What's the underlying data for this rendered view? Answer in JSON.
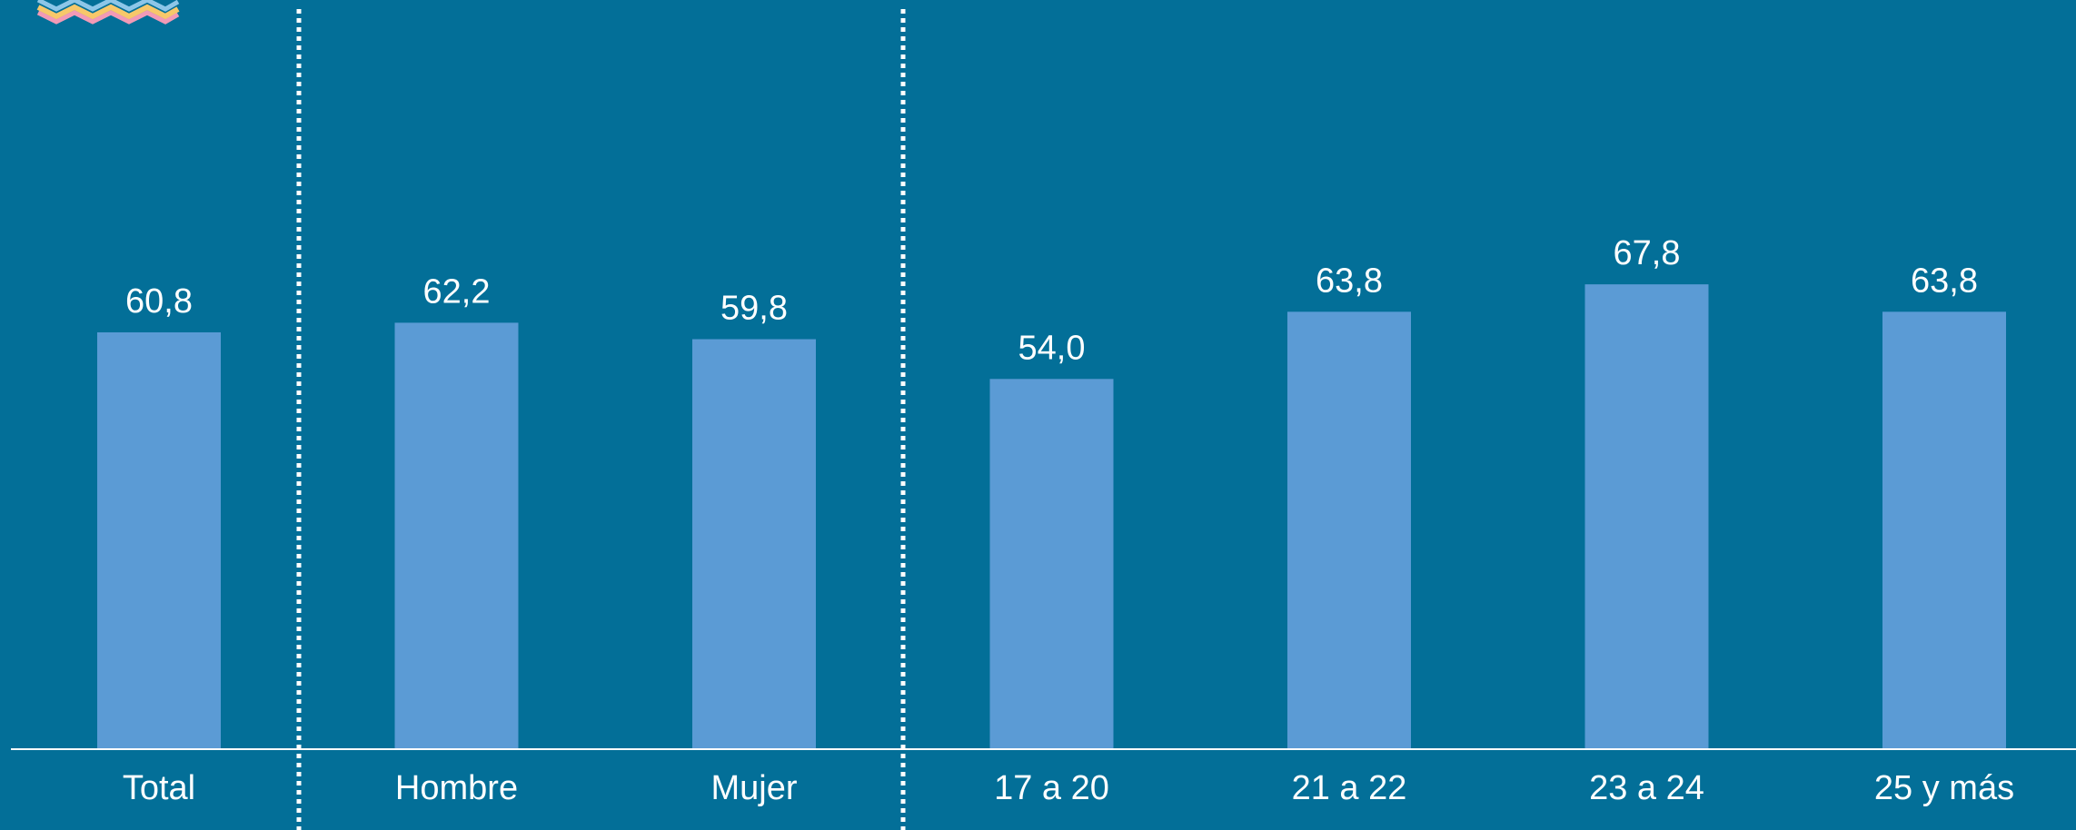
{
  "chart_data": {
    "type": "bar",
    "categories": [
      "Total",
      "Hombre",
      "Mujer",
      "17 a 20",
      "21 a 22",
      "23 a 24",
      "25 y más"
    ],
    "values": [
      60.8,
      62.2,
      59.8,
      54.0,
      63.8,
      67.8,
      63.8
    ],
    "value_labels": [
      "60,8",
      "62,2",
      "59,8",
      "54,0",
      "63,8",
      "67,8",
      "63,8"
    ],
    "color": "#5b9bd5"
  }
}
